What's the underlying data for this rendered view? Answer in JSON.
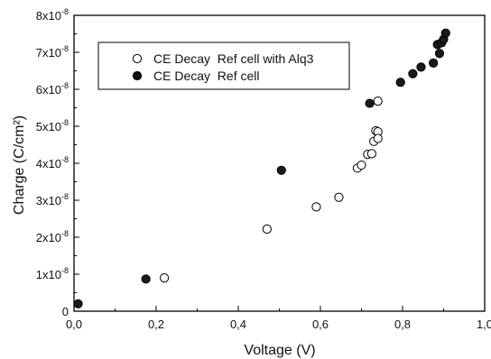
{
  "chart_data": {
    "type": "scatter",
    "xlabel": "Voltage (V)",
    "ylabel": "Charge (C/cm²)",
    "xlim": [
      0.0,
      1.0
    ],
    "ylim": [
      0,
      8e-08
    ],
    "x_ticks": [
      {
        "value": 0.0,
        "label": "0,0"
      },
      {
        "value": 0.2,
        "label": "0,2"
      },
      {
        "value": 0.4,
        "label": "0,4"
      },
      {
        "value": 0.6,
        "label": "0,6"
      },
      {
        "value": 0.8,
        "label": "0,8"
      },
      {
        "value": 1.0,
        "label": "1,0"
      }
    ],
    "y_ticks": [
      {
        "value": 0,
        "mantissa": "0",
        "exponent": ""
      },
      {
        "value": 1e-08,
        "mantissa": "1x10",
        "exponent": "-8"
      },
      {
        "value": 2e-08,
        "mantissa": "2x10",
        "exponent": "-8"
      },
      {
        "value": 3e-08,
        "mantissa": "3x10",
        "exponent": "-8"
      },
      {
        "value": 4e-08,
        "mantissa": "4x10",
        "exponent": "-8"
      },
      {
        "value": 5e-08,
        "mantissa": "5x10",
        "exponent": "-8"
      },
      {
        "value": 6e-08,
        "mantissa": "6x10",
        "exponent": "-8"
      },
      {
        "value": 7e-08,
        "mantissa": "7x10",
        "exponent": "-8"
      },
      {
        "value": 8e-08,
        "mantissa": "8x10",
        "exponent": "-8"
      }
    ],
    "grid": false,
    "legend_position": "top-center",
    "series": [
      {
        "name": "CE Decay  Ref cell with Alq3",
        "marker": "open-circle",
        "color": "#000000",
        "points": [
          [
            0.22,
            9e-09
          ],
          [
            0.47,
            2.22e-08
          ],
          [
            0.59,
            2.82e-08
          ],
          [
            0.645,
            3.08e-08
          ],
          [
            0.69,
            3.87e-08
          ],
          [
            0.7,
            3.95e-08
          ],
          [
            0.715,
            4.24e-08
          ],
          [
            0.725,
            4.26e-08
          ],
          [
            0.73,
            4.59e-08
          ],
          [
            0.735,
            4.88e-08
          ],
          [
            0.74,
            4.85e-08
          ],
          [
            0.74,
            4.67e-08
          ],
          [
            0.74,
            5.68e-08
          ]
        ]
      },
      {
        "name": "CE Decay  Ref cell",
        "marker": "filled-circle",
        "color": "#000000",
        "points": [
          [
            0.01,
            2e-09
          ],
          [
            0.175,
            8.7e-09
          ],
          [
            0.505,
            3.81e-08
          ],
          [
            0.72,
            5.62e-08
          ],
          [
            0.795,
            6.19e-08
          ],
          [
            0.825,
            6.42e-08
          ],
          [
            0.845,
            6.6e-08
          ],
          [
            0.875,
            6.71e-08
          ],
          [
            0.885,
            7.21e-08
          ],
          [
            0.89,
            6.97e-08
          ],
          [
            0.895,
            7.26e-08
          ],
          [
            0.9,
            7.35e-08
          ],
          [
            0.905,
            7.52e-08
          ]
        ]
      }
    ]
  }
}
